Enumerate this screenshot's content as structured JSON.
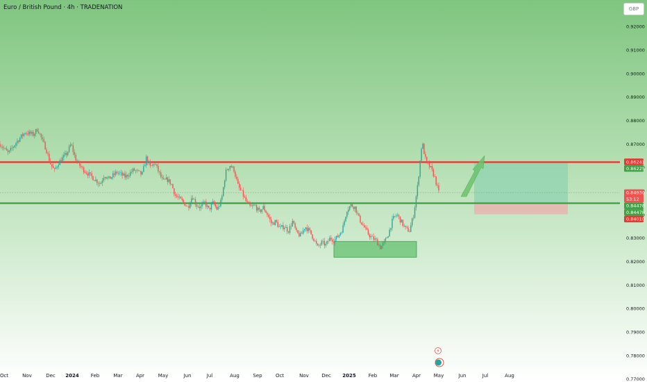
{
  "header": {
    "symbol_title": "Euro / British Pound · 4h · TRADENATION",
    "currency_button": "GBP"
  },
  "colors": {
    "background_top": "#7fc57f",
    "background_bottom": "#ffffff",
    "resistance_line": "#e53935",
    "support_line": "#43a047",
    "candle_up": "#26a69a",
    "candle_down": "#ef5350",
    "target_zone": "#8fd3b0",
    "stop_zone": "#e8b4b0",
    "arrow": "#6cc36c",
    "demand_box": "#5cbf6a"
  },
  "chart_data": {
    "type": "candlestick",
    "title": "Euro / British Pound · 4h · TRADENATION",
    "x_ticks": [
      "Oct",
      "Nov",
      "Dec",
      "2024",
      "Feb",
      "Mar",
      "Apr",
      "May",
      "Jun",
      "Jul",
      "Aug",
      "Sep",
      "Oct",
      "Nov",
      "Dec",
      "2025",
      "Feb",
      "Mar",
      "Apr",
      "May",
      "Jun",
      "Jul",
      "Aug"
    ],
    "y_ticks": [
      "0.92000",
      "0.91000",
      "0.90000",
      "0.89000",
      "0.88000",
      "0.87000",
      "0.86000",
      "0.85000",
      "0.84000",
      "0.83000",
      "0.82000",
      "0.81000",
      "0.80000",
      "0.79000",
      "0.78000",
      "0.77000"
    ],
    "y_tick_values": [
      0.92,
      0.91,
      0.9,
      0.89,
      0.88,
      0.87,
      0.86,
      0.85,
      0.84,
      0.83,
      0.82,
      0.81,
      0.8,
      0.79,
      0.78,
      0.77
    ],
    "ylim": [
      0.7687,
      0.9313
    ],
    "price_path": [
      [
        0,
        0.87
      ],
      [
        2,
        0.866
      ],
      [
        4,
        0.871
      ],
      [
        6,
        0.875
      ],
      [
        8,
        0.874
      ],
      [
        9,
        0.8765
      ],
      [
        10,
        0.872
      ],
      [
        11,
        0.868
      ],
      [
        12,
        0.862
      ],
      [
        13,
        0.8585
      ],
      [
        14,
        0.862
      ],
      [
        16,
        0.866
      ],
      [
        17,
        0.87
      ],
      [
        18,
        0.864
      ],
      [
        19,
        0.861
      ],
      [
        20,
        0.859
      ],
      [
        22,
        0.856
      ],
      [
        24,
        0.853
      ],
      [
        25,
        0.857
      ],
      [
        26,
        0.855
      ],
      [
        28,
        0.858
      ],
      [
        30,
        0.856
      ],
      [
        32,
        0.859
      ],
      [
        34,
        0.857
      ],
      [
        35,
        0.864
      ],
      [
        36,
        0.86
      ],
      [
        37,
        0.862
      ],
      [
        38,
        0.858
      ],
      [
        39,
        0.854
      ],
      [
        40,
        0.855
      ],
      [
        41,
        0.853
      ],
      [
        42,
        0.848
      ],
      [
        44,
        0.845
      ],
      [
        45,
        0.843
      ],
      [
        46,
        0.848
      ],
      [
        47,
        0.844
      ],
      [
        48,
        0.843
      ],
      [
        49,
        0.845
      ],
      [
        50,
        0.842
      ],
      [
        51,
        0.845
      ],
      [
        52,
        0.842
      ],
      [
        53,
        0.846
      ],
      [
        54,
        0.858
      ],
      [
        55,
        0.861
      ],
      [
        56,
        0.859
      ],
      [
        57,
        0.852
      ],
      [
        58,
        0.849
      ],
      [
        59,
        0.845
      ],
      [
        60,
        0.843
      ],
      [
        61,
        0.844
      ],
      [
        62,
        0.841
      ],
      [
        63,
        0.843
      ],
      [
        64,
        0.84
      ],
      [
        65,
        0.836
      ],
      [
        66,
        0.837
      ],
      [
        67,
        0.834
      ],
      [
        68,
        0.835
      ],
      [
        69,
        0.833
      ],
      [
        70,
        0.837
      ],
      [
        71,
        0.832
      ],
      [
        72,
        0.831
      ],
      [
        73,
        0.835
      ],
      [
        74,
        0.833
      ],
      [
        75,
        0.83
      ],
      [
        76,
        0.826
      ],
      [
        77,
        0.828
      ],
      [
        78,
        0.827
      ],
      [
        79,
        0.83
      ],
      [
        80,
        0.829
      ],
      [
        81,
        0.831
      ],
      [
        82,
        0.834
      ],
      [
        83,
        0.842
      ],
      [
        84,
        0.844
      ],
      [
        85,
        0.843
      ],
      [
        86,
        0.838
      ],
      [
        87,
        0.835
      ],
      [
        88,
        0.832
      ],
      [
        89,
        0.83
      ],
      [
        90,
        0.829
      ],
      [
        91,
        0.826
      ],
      [
        92,
        0.828
      ],
      [
        93,
        0.832
      ],
      [
        94,
        0.838
      ],
      [
        95,
        0.84
      ],
      [
        96,
        0.837
      ],
      [
        97,
        0.834
      ],
      [
        98,
        0.833
      ],
      [
        99,
        0.84
      ],
      [
        100,
        0.853
      ],
      [
        101,
        0.871
      ],
      [
        102,
        0.862
      ],
      [
        103,
        0.86
      ],
      [
        104,
        0.856
      ],
      [
        105,
        0.8493
      ]
    ],
    "price_path_x_range": [
      0,
      105
    ],
    "price_path_period": [
      "Oct",
      "Apr"
    ],
    "labels_right": [
      {
        "price": 0.86241,
        "text": "0.86241",
        "color": "#e53935"
      },
      {
        "price": 0.86225,
        "text": "0.86225",
        "color": "#43a047"
      },
      {
        "price": 0.8493,
        "text": "0.84930",
        "color": "#ef5350",
        "sub": "53:12"
      },
      {
        "price": 0.84478,
        "text": "0.84478",
        "color": "#43a047"
      },
      {
        "price": 0.84478,
        "text": "0.84478",
        "color": "#43a047"
      },
      {
        "price": 0.8401,
        "text": "0.84010",
        "color": "#e53935"
      }
    ],
    "horizontal_levels": [
      {
        "name": "resistance",
        "price": 0.8623
      },
      {
        "name": "support",
        "price": 0.8448
      }
    ],
    "current_price": 0.8493,
    "position": {
      "entry": 0.8448,
      "target": 0.8623,
      "stop": 0.8401
    },
    "demand_zone": {
      "low": 0.8218,
      "high": 0.8285
    }
  }
}
